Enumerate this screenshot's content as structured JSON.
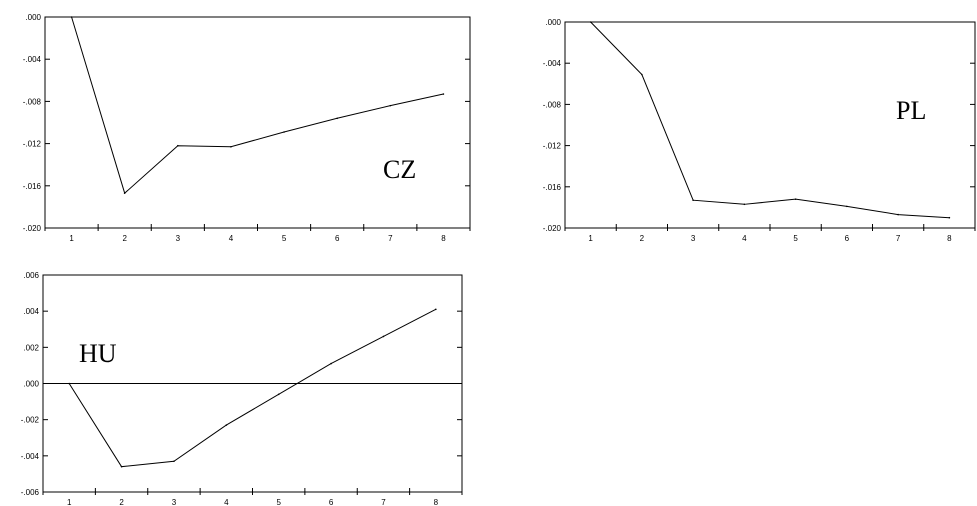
{
  "chart_data": [
    {
      "type": "line",
      "panel_label": "CZ",
      "x": [
        1,
        2,
        3,
        4,
        5,
        6,
        7,
        8
      ],
      "values": [
        0.0,
        -0.0167,
        -0.0122,
        -0.0123,
        -0.0109,
        -0.0096,
        -0.0084,
        -0.0073
      ],
      "ylim": [
        -0.02,
        0.0
      ],
      "yticks": [
        ".000",
        "-.004",
        "-.008",
        "-.012",
        "-.016",
        "-.020"
      ],
      "xticks": [
        "1",
        "2",
        "3",
        "4",
        "5",
        "6",
        "7",
        "8"
      ],
      "zero_line": false,
      "grid": false
    },
    {
      "type": "line",
      "panel_label": "PL",
      "x": [
        1,
        2,
        3,
        4,
        5,
        6,
        7,
        8
      ],
      "values": [
        0.0,
        -0.0051,
        -0.0173,
        -0.0177,
        -0.0172,
        -0.0179,
        -0.0187,
        -0.019
      ],
      "ylim": [
        -0.02,
        0.0
      ],
      "yticks": [
        ".000",
        "-.004",
        "-.008",
        "-.012",
        "-.016",
        "-.020"
      ],
      "xticks": [
        "1",
        "2",
        "3",
        "4",
        "5",
        "6",
        "7",
        "8"
      ],
      "zero_line": true,
      "grid": false
    },
    {
      "type": "line",
      "panel_label": "HU",
      "x": [
        1,
        2,
        3,
        4,
        5,
        6,
        7,
        8
      ],
      "values": [
        0.0,
        -0.0046,
        -0.0043,
        -0.0023,
        -0.0006,
        0.0011,
        0.0026,
        0.0041
      ],
      "ylim": [
        -0.006,
        0.006
      ],
      "yticks": [
        ".006",
        ".004",
        ".002",
        ".000",
        "-.002",
        "-.004",
        "-.006"
      ],
      "xticks": [
        "1",
        "2",
        "3",
        "4",
        "5",
        "6",
        "7",
        "8"
      ],
      "zero_line": true,
      "grid": false
    }
  ]
}
